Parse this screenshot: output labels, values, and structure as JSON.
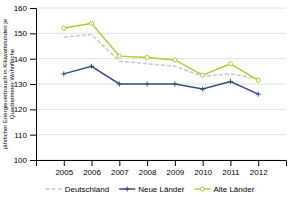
{
  "chart_data": {
    "type": "line",
    "ylabel": "jährlicher Energieverbrauch in Kilowattstunden je\nQuadratmeter Wohnfläche",
    "x": [
      2005,
      2006,
      2007,
      2008,
      2009,
      2010,
      2011,
      2012
    ],
    "xlim": [
      2004,
      2013
    ],
    "xticks": [
      2005,
      2006,
      2007,
      2008,
      2009,
      2010,
      2011,
      2012
    ],
    "ylim": [
      100,
      160
    ],
    "yticks": [
      100,
      110,
      120,
      130,
      140,
      150,
      160
    ],
    "grid": true,
    "legend": "bottom",
    "series": [
      {
        "name": "Deutschland",
        "color": "#c0c8d8",
        "line_style": "dashed",
        "values": [
          148.5,
          149.5,
          139,
          138,
          137,
          133,
          134,
          132
        ]
      },
      {
        "name": "Neue Länder",
        "color": "#334d7f",
        "line_style": "solid",
        "marker": "plus",
        "values": [
          134,
          137,
          130,
          130,
          130,
          128,
          131,
          126
        ]
      },
      {
        "name": "Alte Länder",
        "color": "#b8c832",
        "line_style": "solid",
        "marker": "circle",
        "values": [
          152,
          154,
          141,
          140.5,
          139.5,
          133.5,
          138,
          131.5
        ]
      }
    ]
  }
}
